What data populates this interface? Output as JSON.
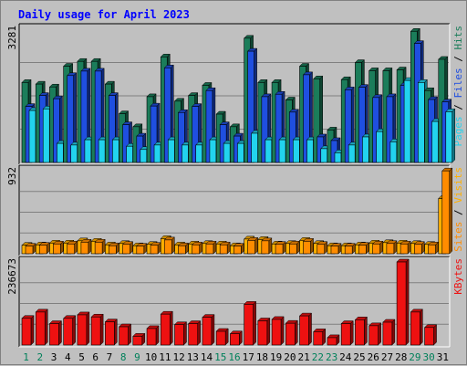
{
  "chart_data": {
    "type": "bar",
    "title": "Daily usage for April 2023",
    "days": [
      "1",
      "2",
      "3",
      "4",
      "5",
      "6",
      "7",
      "8",
      "9",
      "10",
      "11",
      "12",
      "13",
      "14",
      "15",
      "16",
      "17",
      "18",
      "19",
      "20",
      "21",
      "22",
      "23",
      "24",
      "25",
      "26",
      "27",
      "28",
      "29",
      "30",
      "31"
    ],
    "weekend_days": [
      "1",
      "2",
      "8",
      "9",
      "15",
      "16",
      "22",
      "23",
      "29",
      "30"
    ],
    "colors": {
      "hits": "#1b7d5a",
      "files": "#1f4fe0",
      "pages": "#22d3ee",
      "visits": "#ffb000",
      "sites": "#ff8c00",
      "kbytes": "#ee1111",
      "weekday_label": "#000000",
      "weekend_label": "#00805a"
    },
    "panels": [
      {
        "id": "traffic",
        "max_label": "3281",
        "ymax": 3281,
        "right_labels": [
          {
            "text": "Pages",
            "color": "#22d3ee"
          },
          {
            "text": " / ",
            "color": "#000000"
          },
          {
            "text": "Files",
            "color": "#1f4fe0"
          },
          {
            "text": " / ",
            "color": "#000000"
          },
          {
            "text": "Hits",
            "color": "#1b7d5a"
          }
        ],
        "series": [
          {
            "name": "Hits",
            "color": "#1b7d5a",
            "values": [
              1970,
              1930,
              1860,
              2370,
              2490,
              2490,
              1930,
              1200,
              880,
              1620,
              2600,
              1510,
              1650,
              1900,
              1190,
              880,
              3060,
              1970,
              1970,
              1540,
              2370,
              2060,
              800,
              2040,
              2460,
              2260,
              2260,
              2280,
              3230,
              1770,
              2540
            ]
          },
          {
            "name": "Files",
            "color": "#1f4fe0",
            "values": [
              1380,
              1650,
              1570,
              2140,
              2250,
              2250,
              1650,
              930,
              650,
              1390,
              2330,
              1230,
              1380,
              1770,
              930,
              650,
              2740,
              1620,
              1680,
              1240,
              2160,
              630,
              540,
              1790,
              1850,
              1600,
              1620,
              1900,
              2930,
              1550,
              1490
            ]
          },
          {
            "name": "Pages",
            "color": "#22d3ee",
            "values": [
              1280,
              1320,
              470,
              430,
              560,
              560,
              560,
              400,
              320,
              430,
              560,
              430,
              430,
              560,
              470,
              470,
              720,
              560,
              560,
              560,
              560,
              340,
              240,
              430,
              630,
              760,
              510,
              2020,
              1970,
              1010,
              1250
            ]
          }
        ]
      },
      {
        "id": "visitors",
        "max_label": "932",
        "ymax": 932,
        "right_labels": [
          {
            "text": "Sites",
            "color": "#ff8c00"
          },
          {
            "text": " / ",
            "color": "#000000"
          },
          {
            "text": "Visits",
            "color": "#ffb000"
          }
        ],
        "series": [
          {
            "name": "Visits",
            "color": "#ffb000",
            "values": [
              95,
              100,
              120,
              120,
              145,
              140,
              100,
              115,
              90,
              105,
              170,
              100,
              110,
              115,
              110,
              90,
              165,
              160,
              110,
              115,
              150,
              115,
              90,
              90,
              100,
              120,
              125,
              120,
              115,
              105,
              620
            ]
          },
          {
            "name": "Sites",
            "color": "#ff8c00",
            "values": [
              85,
              95,
              110,
              110,
              130,
              130,
              90,
              105,
              85,
              95,
              155,
              90,
              100,
              110,
              100,
              85,
              150,
              145,
              105,
              110,
              140,
              105,
              85,
              85,
              95,
              110,
              115,
              110,
              105,
              100,
              930
            ]
          }
        ]
      },
      {
        "id": "volume",
        "max_label": "236673",
        "ymax": 236673,
        "right_labels": [
          {
            "text": "KBytes",
            "color": "#ee1111"
          }
        ],
        "series": [
          {
            "name": "KBytes",
            "color": "#ee1111",
            "values": [
              76000,
              94000,
              61000,
              76000,
              86000,
              80000,
              66000,
              52000,
              25000,
              47000,
              88000,
              58000,
              61000,
              79000,
              39000,
              32000,
              116000,
              69000,
              73000,
              62000,
              83000,
              38000,
              21000,
              61000,
              72000,
              55000,
              65000,
              236673,
              94000,
              50000,
              0
            ]
          }
        ]
      }
    ]
  }
}
